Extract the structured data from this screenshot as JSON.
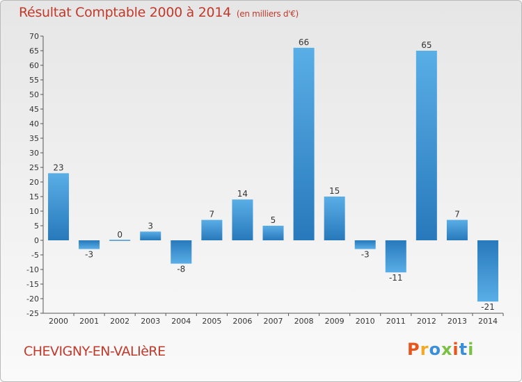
{
  "header": {
    "title": "Résultat Comptable 2000 à 2014",
    "subtitle": "(en milliers d'€)"
  },
  "footer": {
    "commune": "CHEVIGNY-EN-VALIèRE",
    "logo_text": "Proxiti",
    "logo_colors": [
      "#e8541c",
      "#f5a623",
      "#3a8fd8",
      "#7ac143",
      "#e8541c",
      "#3a8fd8",
      "#7ac143"
    ]
  },
  "colors": {
    "bar_light": "#5aaee6",
    "bar_dark": "#2779bb",
    "axis": "#555555",
    "grid": "#cccccc"
  },
  "chart_data": {
    "type": "bar",
    "categories": [
      "2000",
      "2001",
      "2002",
      "2003",
      "2004",
      "2005",
      "2006",
      "2007",
      "2008",
      "2009",
      "2010",
      "2011",
      "2012",
      "2013",
      "2014"
    ],
    "values": [
      23,
      -3,
      0,
      3,
      -8,
      7,
      14,
      5,
      66,
      15,
      -3,
      -11,
      65,
      7,
      -21
    ],
    "ylim": [
      -25,
      70
    ],
    "yticks": [
      70,
      65,
      60,
      55,
      50,
      45,
      40,
      35,
      30,
      25,
      20,
      15,
      10,
      5,
      0,
      -5,
      -10,
      -15,
      -20,
      -25
    ],
    "title": "Résultat Comptable 2000 à 2014",
    "subtitle": "(en milliers d'€)",
    "xlabel": "",
    "ylabel": "",
    "grid": false
  }
}
